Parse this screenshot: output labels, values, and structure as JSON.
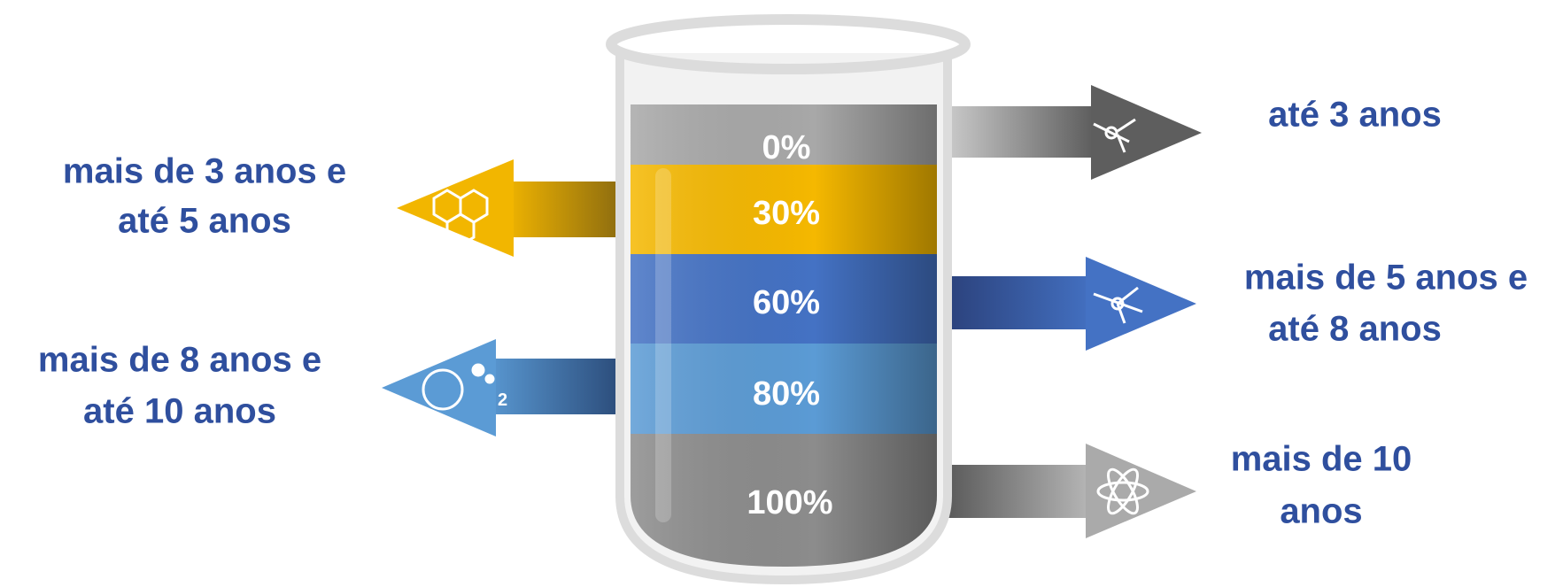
{
  "levels": [
    {
      "percent": "0%",
      "label": [
        "até 3 anos"
      ]
    },
    {
      "percent": "30%",
      "label": [
        "mais de 3 anos e",
        "até 5 anos"
      ]
    },
    {
      "percent": "60%",
      "label": [
        "mais de 5 anos e",
        "até 8 anos"
      ]
    },
    {
      "percent": "80%",
      "label": [
        "mais de 8 anos e",
        "até 10 anos"
      ]
    },
    {
      "percent": "100%",
      "label": [
        "mais de 10",
        "anos"
      ]
    }
  ]
}
